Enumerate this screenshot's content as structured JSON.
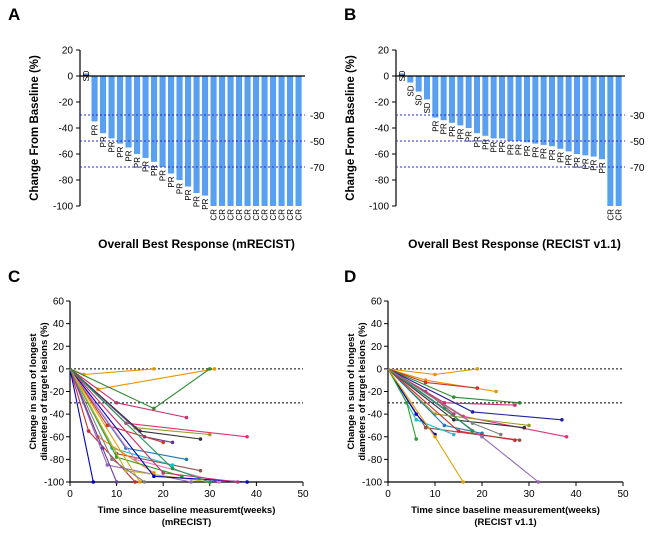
{
  "chart_data": [
    {
      "panel": "A",
      "type": "bar",
      "title": "",
      "xlabel": "Overall Best Response (mRECIST)",
      "ylabel": "Change From Baseline (%)",
      "ylim": [
        -100,
        20
      ],
      "yticks": [
        20,
        0,
        -20,
        -40,
        -60,
        -80,
        -100
      ],
      "color": "#5aa0f0",
      "reference_lines": [
        -30,
        -50,
        -70
      ],
      "reference_labels": [
        "-30",
        "-50",
        "-70"
      ],
      "values": [
        2,
        -35,
        -44,
        -48,
        -52,
        -55,
        -60,
        -63,
        -66,
        -70,
        -75,
        -80,
        -85,
        -90,
        -92,
        -100,
        -100,
        -100,
        -100,
        -100,
        -100,
        -100,
        -100,
        -100,
        -100,
        -100
      ],
      "labels": [
        "SD",
        "PR",
        "PR",
        "PR",
        "PR",
        "PR",
        "PR",
        "PR",
        "PR",
        "PR",
        "PR",
        "PR",
        "PR",
        "PR",
        "PR",
        "CR",
        "CR",
        "CR",
        "CR",
        "CR",
        "CR",
        "CR",
        "CR",
        "CR",
        "CR",
        "CR"
      ]
    },
    {
      "panel": "B",
      "type": "bar",
      "title": "",
      "xlabel": "Overall Best Response (RECIST v1.1)",
      "ylabel": "Change From Baseline (%)",
      "ylim": [
        -100,
        20
      ],
      "yticks": [
        20,
        0,
        -20,
        -40,
        -60,
        -80,
        -100
      ],
      "color": "#5aa0f0",
      "reference_lines": [
        -30,
        -50,
        -70
      ],
      "reference_labels": [
        "-30",
        "-50",
        "-70"
      ],
      "values": [
        2,
        -5,
        -12,
        -18,
        -32,
        -34,
        -36,
        -38,
        -40,
        -44,
        -46,
        -48,
        -48,
        -50,
        -50,
        -51,
        -52,
        -53,
        -54,
        -56,
        -58,
        -60,
        -61,
        -62,
        -64,
        -100,
        -100
      ],
      "labels": [
        "SD",
        "SD",
        "SD",
        "SD",
        "PR",
        "PR",
        "PR",
        "PR",
        "PR",
        "PR",
        "PR",
        "PR",
        "PR",
        "PR",
        "PR",
        "PR",
        "PR",
        "PR",
        "PR",
        "PR",
        "PR",
        "PR",
        "PR",
        "PR",
        "PR",
        "CR",
        "CR"
      ]
    },
    {
      "panel": "C",
      "type": "line",
      "title": "",
      "xlabel": "Time since baseline measuremt(weeks)",
      "xlabel2": "(mRECIST)",
      "ylabel": "Change in sum of longest",
      "ylabel2": "diameters of target lesions (%)",
      "xlim": [
        0,
        50
      ],
      "ylim": [
        -100,
        60
      ],
      "xticks": [
        0,
        10,
        20,
        30,
        40,
        50
      ],
      "yticks": [
        60,
        40,
        20,
        0,
        -20,
        -40,
        -60,
        -80,
        -100
      ],
      "reference_lines": [
        0,
        -30
      ],
      "series": [
        {
          "color": "#e69500",
          "x": [
            0,
            3,
            18
          ],
          "y": [
            0,
            -5,
            0
          ]
        },
        {
          "color": "#e69500",
          "x": [
            0,
            6,
            31
          ],
          "y": [
            0,
            -18,
            0
          ]
        },
        {
          "color": "#2e8b2e",
          "x": [
            0,
            18,
            30
          ],
          "y": [
            0,
            -35,
            0
          ]
        },
        {
          "color": "#c8326e",
          "x": [
            0,
            10,
            25
          ],
          "y": [
            0,
            -30,
            -43
          ]
        },
        {
          "color": "#e8307a",
          "x": [
            0,
            12,
            38
          ],
          "y": [
            0,
            -48,
            -60
          ]
        },
        {
          "color": "#9a9a20",
          "x": [
            0,
            14,
            30
          ],
          "y": [
            0,
            -52,
            -58
          ]
        },
        {
          "color": "#333333",
          "x": [
            0,
            15,
            28
          ],
          "y": [
            0,
            -55,
            -62
          ]
        },
        {
          "color": "#5a3a8a",
          "x": [
            0,
            16,
            22
          ],
          "y": [
            0,
            -60,
            -65
          ]
        },
        {
          "color": "#d43030",
          "x": [
            0,
            8,
            20
          ],
          "y": [
            0,
            -50,
            -65
          ]
        },
        {
          "color": "#1f77b4",
          "x": [
            0,
            12,
            25
          ],
          "y": [
            0,
            -70,
            -80
          ]
        },
        {
          "color": "#8c564b",
          "x": [
            0,
            10,
            28
          ],
          "y": [
            0,
            -75,
            -90
          ]
        },
        {
          "color": "#e377c2",
          "x": [
            0,
            14,
            32
          ],
          "y": [
            0,
            -80,
            -100
          ]
        },
        {
          "color": "#17becf",
          "x": [
            0,
            9,
            22
          ],
          "y": [
            0,
            -70,
            -85
          ]
        },
        {
          "color": "#ff7f0e",
          "x": [
            0,
            6,
            18
          ],
          "y": [
            0,
            -60,
            -92
          ]
        },
        {
          "color": "#2ca02c",
          "x": [
            0,
            10,
            24
          ],
          "y": [
            0,
            -78,
            -95
          ]
        },
        {
          "color": "#d62728",
          "x": [
            0,
            4,
            14
          ],
          "y": [
            0,
            -55,
            -100
          ]
        },
        {
          "color": "#9467bd",
          "x": [
            0,
            8,
            26
          ],
          "y": [
            0,
            -85,
            -100
          ]
        },
        {
          "color": "#bcbd22",
          "x": [
            0,
            12,
            30
          ],
          "y": [
            0,
            -90,
            -100
          ]
        },
        {
          "color": "#0000cc",
          "x": [
            0,
            5
          ],
          "y": [
            0,
            -100
          ]
        },
        {
          "color": "#0000cc",
          "x": [
            0,
            18,
            38
          ],
          "y": [
            0,
            -95,
            -100
          ]
        },
        {
          "color": "#c8326e",
          "x": [
            0,
            20,
            36
          ],
          "y": [
            0,
            -92,
            -100
          ]
        },
        {
          "color": "#6a3d9a",
          "x": [
            0,
            7,
            10
          ],
          "y": [
            0,
            -70,
            -100
          ]
        },
        {
          "color": "#e6a000",
          "x": [
            0,
            15
          ],
          "y": [
            0,
            -100
          ]
        },
        {
          "color": "#1a9850",
          "x": [
            0,
            22,
            30
          ],
          "y": [
            0,
            -88,
            -100
          ]
        },
        {
          "color": "#7f7f7f",
          "x": [
            0,
            9,
            16
          ],
          "y": [
            0,
            -80,
            -100
          ]
        }
      ]
    },
    {
      "panel": "D",
      "type": "line",
      "title": "",
      "xlabel": "Time since baseline measurement(weeks)",
      "xlabel2": "(RECIST v1.1)",
      "ylabel": "Change in sum of longest",
      "ylabel2": "diameters of target lesions (%)",
      "xlim": [
        0,
        50
      ],
      "ylim": [
        -100,
        60
      ],
      "xticks": [
        0,
        10,
        20,
        30,
        40,
        50
      ],
      "yticks": [
        60,
        40,
        20,
        0,
        -20,
        -40,
        -60,
        -80,
        -100
      ],
      "reference_lines": [
        0,
        -30
      ],
      "series": [
        {
          "color": "#e69500",
          "x": [
            0,
            8,
            23
          ],
          "y": [
            0,
            -10,
            -20
          ]
        },
        {
          "color": "#d43030",
          "x": [
            0,
            8,
            19
          ],
          "y": [
            0,
            -12,
            -17
          ]
        },
        {
          "color": "#e69500",
          "x": [
            0,
            10,
            19
          ],
          "y": [
            0,
            -5,
            0
          ]
        },
        {
          "color": "#2e8b2e",
          "x": [
            0,
            14,
            28
          ],
          "y": [
            0,
            -25,
            -30
          ]
        },
        {
          "color": "#c8326e",
          "x": [
            0,
            12,
            27
          ],
          "y": [
            0,
            -30,
            -32
          ]
        },
        {
          "color": "#2020a0",
          "x": [
            0,
            18,
            37
          ],
          "y": [
            0,
            -38,
            -45
          ]
        },
        {
          "color": "#e8307a",
          "x": [
            0,
            16,
            38
          ],
          "y": [
            0,
            -42,
            -60
          ]
        },
        {
          "color": "#333333",
          "x": [
            0,
            14,
            29
          ],
          "y": [
            0,
            -45,
            -52
          ]
        },
        {
          "color": "#9a9a20",
          "x": [
            0,
            10,
            30
          ],
          "y": [
            0,
            -40,
            -50
          ]
        },
        {
          "color": "#1f77b4",
          "x": [
            0,
            12,
            20
          ],
          "y": [
            0,
            -50,
            -57
          ]
        },
        {
          "color": "#8c564b",
          "x": [
            0,
            8,
            28
          ],
          "y": [
            0,
            -52,
            -63
          ]
        },
        {
          "color": "#17becf",
          "x": [
            0,
            6,
            14
          ],
          "y": [
            0,
            -45,
            -58
          ]
        },
        {
          "color": "#0000cc",
          "x": [
            0,
            6,
            10
          ],
          "y": [
            0,
            -40,
            -58
          ]
        },
        {
          "color": "#2ca02c",
          "x": [
            0,
            4,
            6
          ],
          "y": [
            0,
            -30,
            -62
          ]
        },
        {
          "color": "#d62728",
          "x": [
            0,
            15,
            27
          ],
          "y": [
            0,
            -55,
            -63
          ]
        },
        {
          "color": "#9467bd",
          "x": [
            0,
            20,
            32
          ],
          "y": [
            0,
            -60,
            -100
          ]
        },
        {
          "color": "#e6a000",
          "x": [
            0,
            10,
            16
          ],
          "y": [
            0,
            -60,
            -100
          ]
        },
        {
          "color": "#c8326e",
          "x": [
            0,
            8,
            14
          ],
          "y": [
            0,
            -20,
            -40
          ]
        },
        {
          "color": "#1a9850",
          "x": [
            0,
            12,
            18
          ],
          "y": [
            0,
            -35,
            -55
          ]
        },
        {
          "color": "#7f7f7f",
          "x": [
            0,
            18,
            24
          ],
          "y": [
            0,
            -48,
            -58
          ]
        }
      ]
    }
  ]
}
